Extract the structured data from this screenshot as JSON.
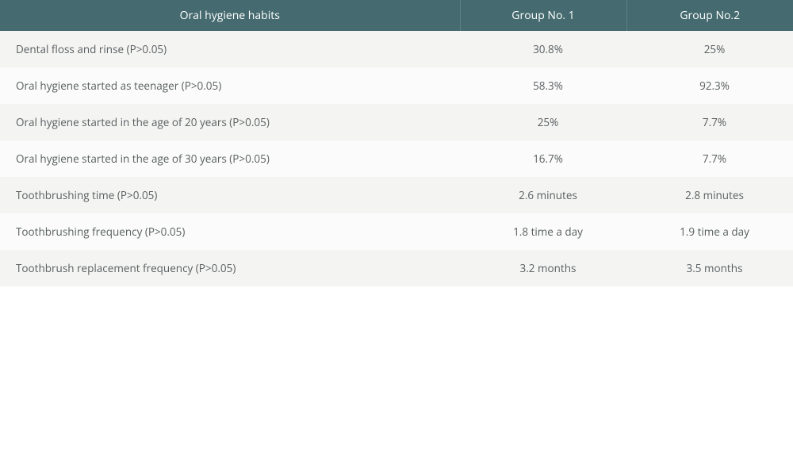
{
  "table": {
    "header_bg": "#456a6f",
    "row_even_bg": "#f4f4f3",
    "row_odd_bg": "#fbfbfb",
    "columns": [
      "Oral hygiene habits",
      "Group No. 1",
      "Group No.2"
    ],
    "rows": [
      {
        "habit": "Dental floss and rinse (P>0.05)",
        "g1": "30.8%",
        "g2": "25%"
      },
      {
        "habit": "Oral hygiene started as teenager (P>0.05)",
        "g1": "58.3%",
        "g2": "92.3%"
      },
      {
        "habit": "Oral hygiene started in the age of 20 years (P>0.05)",
        "g1": "25%",
        "g2": "7.7%"
      },
      {
        "habit": "Oral hygiene started in the age of 30 years (P>0.05)",
        "g1": "16.7%",
        "g2": "7.7%"
      },
      {
        "habit": "Toothbrushing time (P>0.05)",
        "g1": "2.6 minutes",
        "g2": "2.8 minutes"
      },
      {
        "habit": "Toothbrushing frequency (P>0.05)",
        "g1": "1.8 time a day",
        "g2": "1.9 time a day"
      },
      {
        "habit": "Toothbrush replacement frequency (P>0.05)",
        "g1": "3.2 months",
        "g2": "3.5 months"
      }
    ]
  }
}
